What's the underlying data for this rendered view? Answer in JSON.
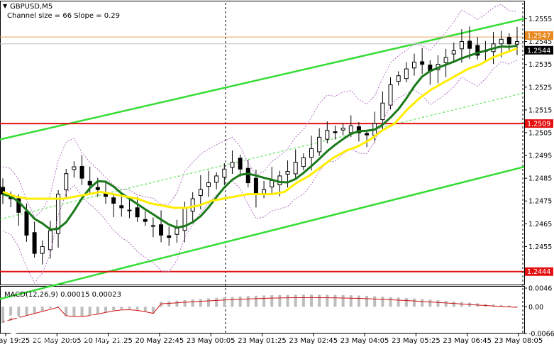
{
  "header": {
    "symbol": "GBPUSD,M5",
    "channel_info": "Channel size = 66 Slope = 0.29"
  },
  "macd": {
    "label": "MACD(12,26,9) 0.00015 0.00023",
    "ticks": [
      {
        "v": 0.0046,
        "label": "0.0046"
      },
      {
        "v": 0.0,
        "label": "0.00"
      },
      {
        "v": -0.0066,
        "label": "-0.0066"
      }
    ],
    "colors": {
      "hist": "#bdbdbd",
      "signal": "#d01010"
    }
  },
  "watermark": {
    "name": "instaforex",
    "tagline": "Instant Forex Trading"
  },
  "chart_data": {
    "type": "candlestick",
    "ylim": [
      1.2438,
      1.2562
    ],
    "y_ticks": [
      "1.2555",
      "1.2545",
      "1.2535",
      "1.2525",
      "1.2515",
      "1.2505",
      "1.2495",
      "1.2485",
      "1.2475",
      "1.2465",
      "1.2455"
    ],
    "x_ticks": [
      "20 May 19:25",
      "20 May 20:05",
      "20 May 21:25",
      "20 May 22:45",
      "23 May 00:05",
      "23 May 01:25",
      "23 May 02:45",
      "23 May 04:05",
      "23 May 05:25",
      "23 May 06:45",
      "23 May 08:05"
    ],
    "levels": [
      {
        "value": 1.2547,
        "label": "1.2547",
        "color": "#e8a060",
        "kind": "bid"
      },
      {
        "value": 1.2544,
        "label": "1.2544",
        "color": "#c0c0c0",
        "kind": "ask"
      },
      {
        "value": 1.2509,
        "label": "1.2509",
        "color": "#e41010",
        "kind": "level"
      },
      {
        "value": 1.2444,
        "label": "1.2444",
        "color": "#e41010",
        "kind": "level"
      }
    ],
    "channel": {
      "color": "#33dd33",
      "upper": [
        [
          0,
          1.2502
        ],
        [
          739,
          1.2555
        ]
      ],
      "lower": [
        [
          0,
          1.2432
        ],
        [
          739,
          1.249
        ]
      ]
    },
    "series": [
      {
        "name": "",
        "values": [
          1.2478,
          1.2476,
          1.247,
          1.246,
          1.2452,
          1.2455,
          1.2462,
          1.2478,
          1.2487,
          1.249,
          1.2485,
          1.2482,
          1.248,
          1.2477,
          1.2474,
          1.2472,
          1.2471,
          1.2468,
          1.2466,
          1.2464,
          1.246,
          1.2459,
          1.2463,
          1.2472,
          1.2476,
          1.248,
          1.2483,
          1.2486,
          1.2489,
          1.2492,
          1.2489,
          1.2483,
          1.2478,
          1.248,
          1.2484,
          1.2486,
          1.2488,
          1.2492,
          1.2494,
          1.2498,
          1.2503,
          1.2506,
          1.2505,
          1.2507,
          1.2508,
          1.2505,
          1.2504,
          1.2509,
          1.2518,
          1.2526,
          1.253,
          1.2533,
          1.2536,
          1.2535,
          1.2532,
          1.2535,
          1.2538,
          1.2541,
          1.2545,
          1.2542,
          1.2539,
          1.2541,
          1.2544,
          1.2546,
          1.2544,
          1.2545
        ]
      },
      {
        "name": "",
        "values": [
          1.2479,
          1.2477,
          1.2476,
          1.2476,
          1.2476,
          1.2476,
          1.2477,
          1.2478,
          1.2479,
          1.2478,
          1.2477,
          1.2476,
          1.2474,
          1.2473,
          1.2472,
          1.2472,
          1.2473,
          1.2475,
          1.2476,
          1.2477,
          1.2478,
          1.2478,
          1.2478,
          1.2479,
          1.2483,
          1.2486,
          1.249,
          1.2494,
          1.2497,
          1.2499,
          1.2502,
          1.2506,
          1.2509,
          1.2515,
          1.252,
          1.2524,
          1.2527,
          1.253,
          1.2533,
          1.2535,
          1.2538,
          1.254,
          1.2542
        ]
      }
    ]
  }
}
